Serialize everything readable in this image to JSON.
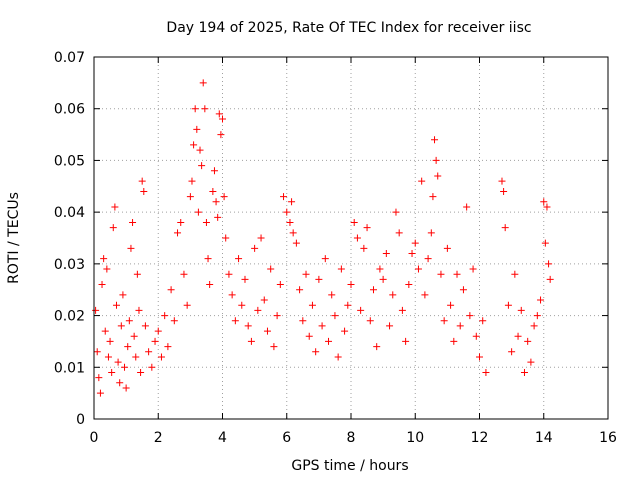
{
  "chart_data": {
    "type": "scatter",
    "title": "Day 194 of 2025, Rate Of TEC Index for receiver iisc",
    "xlabel": "GPS time / hours",
    "ylabel": "ROTI / TECUs",
    "xlim": [
      0,
      16
    ],
    "ylim": [
      0,
      0.07
    ],
    "xticks": [
      0,
      2,
      4,
      6,
      8,
      10,
      12,
      14,
      16
    ],
    "xtick_labels": [
      "0",
      "2",
      "4",
      "6",
      "8",
      "10",
      "12",
      "14",
      "16"
    ],
    "yticks": [
      0,
      0.01,
      0.02,
      0.03,
      0.04,
      0.05,
      0.06,
      0.07
    ],
    "ytick_labels": [
      "0",
      "0.01",
      "0.02",
      "0.03",
      "0.04",
      "0.05",
      "0.06",
      "0.07"
    ],
    "grid": true,
    "marker": "+",
    "color": "#ff0000",
    "series": [
      {
        "name": "ROTI",
        "points": [
          [
            0.05,
            0.021
          ],
          [
            0.1,
            0.013
          ],
          [
            0.15,
            0.008
          ],
          [
            0.2,
            0.005
          ],
          [
            0.25,
            0.026
          ],
          [
            0.3,
            0.031
          ],
          [
            0.35,
            0.017
          ],
          [
            0.4,
            0.029
          ],
          [
            0.45,
            0.012
          ],
          [
            0.5,
            0.015
          ],
          [
            0.55,
            0.009
          ],
          [
            0.6,
            0.037
          ],
          [
            0.65,
            0.041
          ],
          [
            0.7,
            0.022
          ],
          [
            0.75,
            0.011
          ],
          [
            0.8,
            0.007
          ],
          [
            0.85,
            0.018
          ],
          [
            0.9,
            0.024
          ],
          [
            0.95,
            0.01
          ],
          [
            1.0,
            0.006
          ],
          [
            1.05,
            0.014
          ],
          [
            1.1,
            0.019
          ],
          [
            1.15,
            0.033
          ],
          [
            1.2,
            0.038
          ],
          [
            1.25,
            0.016
          ],
          [
            1.3,
            0.012
          ],
          [
            1.35,
            0.028
          ],
          [
            1.4,
            0.021
          ],
          [
            1.45,
            0.009
          ],
          [
            1.5,
            0.046
          ],
          [
            1.55,
            0.044
          ],
          [
            1.6,
            0.018
          ],
          [
            1.7,
            0.013
          ],
          [
            1.8,
            0.01
          ],
          [
            1.9,
            0.015
          ],
          [
            2.0,
            0.017
          ],
          [
            2.1,
            0.012
          ],
          [
            2.2,
            0.02
          ],
          [
            2.3,
            0.014
          ],
          [
            2.4,
            0.025
          ],
          [
            2.5,
            0.019
          ],
          [
            2.6,
            0.036
          ],
          [
            2.7,
            0.038
          ],
          [
            2.8,
            0.028
          ],
          [
            2.9,
            0.022
          ],
          [
            3.0,
            0.043
          ],
          [
            3.05,
            0.046
          ],
          [
            3.1,
            0.053
          ],
          [
            3.15,
            0.06
          ],
          [
            3.2,
            0.056
          ],
          [
            3.25,
            0.04
          ],
          [
            3.3,
            0.052
          ],
          [
            3.35,
            0.049
          ],
          [
            3.4,
            0.065
          ],
          [
            3.45,
            0.06
          ],
          [
            3.5,
            0.038
          ],
          [
            3.55,
            0.031
          ],
          [
            3.6,
            0.026
          ],
          [
            3.7,
            0.044
          ],
          [
            3.75,
            0.048
          ],
          [
            3.8,
            0.042
          ],
          [
            3.85,
            0.039
          ],
          [
            3.9,
            0.059
          ],
          [
            3.95,
            0.055
          ],
          [
            4.0,
            0.058
          ],
          [
            4.05,
            0.043
          ],
          [
            4.1,
            0.035
          ],
          [
            4.2,
            0.028
          ],
          [
            4.3,
            0.024
          ],
          [
            4.4,
            0.019
          ],
          [
            4.5,
            0.031
          ],
          [
            4.6,
            0.022
          ],
          [
            4.7,
            0.027
          ],
          [
            4.8,
            0.018
          ],
          [
            4.9,
            0.015
          ],
          [
            5.0,
            0.033
          ],
          [
            5.1,
            0.021
          ],
          [
            5.2,
            0.035
          ],
          [
            5.3,
            0.023
          ],
          [
            5.4,
            0.017
          ],
          [
            5.5,
            0.029
          ],
          [
            5.6,
            0.014
          ],
          [
            5.7,
            0.02
          ],
          [
            5.8,
            0.026
          ],
          [
            5.9,
            0.043
          ],
          [
            6.0,
            0.04
          ],
          [
            6.1,
            0.038
          ],
          [
            6.15,
            0.042
          ],
          [
            6.2,
            0.036
          ],
          [
            6.3,
            0.034
          ],
          [
            6.4,
            0.025
          ],
          [
            6.5,
            0.019
          ],
          [
            6.6,
            0.028
          ],
          [
            6.7,
            0.016
          ],
          [
            6.8,
            0.022
          ],
          [
            6.9,
            0.013
          ],
          [
            7.0,
            0.027
          ],
          [
            7.1,
            0.018
          ],
          [
            7.2,
            0.031
          ],
          [
            7.3,
            0.015
          ],
          [
            7.4,
            0.024
          ],
          [
            7.5,
            0.02
          ],
          [
            7.6,
            0.012
          ],
          [
            7.7,
            0.029
          ],
          [
            7.8,
            0.017
          ],
          [
            7.9,
            0.022
          ],
          [
            8.0,
            0.026
          ],
          [
            8.1,
            0.038
          ],
          [
            8.2,
            0.035
          ],
          [
            8.3,
            0.021
          ],
          [
            8.4,
            0.033
          ],
          [
            8.5,
            0.037
          ],
          [
            8.6,
            0.019
          ],
          [
            8.7,
            0.025
          ],
          [
            8.8,
            0.014
          ],
          [
            8.9,
            0.029
          ],
          [
            9.0,
            0.027
          ],
          [
            9.1,
            0.032
          ],
          [
            9.2,
            0.018
          ],
          [
            9.3,
            0.024
          ],
          [
            9.4,
            0.04
          ],
          [
            9.5,
            0.036
          ],
          [
            9.6,
            0.021
          ],
          [
            9.7,
            0.015
          ],
          [
            9.8,
            0.026
          ],
          [
            9.9,
            0.032
          ],
          [
            10.0,
            0.034
          ],
          [
            10.1,
            0.029
          ],
          [
            10.2,
            0.046
          ],
          [
            10.3,
            0.024
          ],
          [
            10.4,
            0.031
          ],
          [
            10.5,
            0.036
          ],
          [
            10.55,
            0.043
          ],
          [
            10.6,
            0.054
          ],
          [
            10.65,
            0.05
          ],
          [
            10.7,
            0.047
          ],
          [
            10.8,
            0.028
          ],
          [
            10.9,
            0.019
          ],
          [
            11.0,
            0.033
          ],
          [
            11.1,
            0.022
          ],
          [
            11.2,
            0.015
          ],
          [
            11.3,
            0.028
          ],
          [
            11.4,
            0.018
          ],
          [
            11.5,
            0.025
          ],
          [
            11.6,
            0.041
          ],
          [
            11.7,
            0.02
          ],
          [
            11.8,
            0.029
          ],
          [
            11.9,
            0.016
          ],
          [
            12.0,
            0.012
          ],
          [
            12.1,
            0.019
          ],
          [
            12.2,
            0.009
          ],
          [
            12.7,
            0.046
          ],
          [
            12.75,
            0.044
          ],
          [
            12.8,
            0.037
          ],
          [
            12.9,
            0.022
          ],
          [
            13.0,
            0.013
          ],
          [
            13.1,
            0.028
          ],
          [
            13.2,
            0.016
          ],
          [
            13.3,
            0.021
          ],
          [
            13.4,
            0.009
          ],
          [
            13.5,
            0.015
          ],
          [
            13.6,
            0.011
          ],
          [
            13.7,
            0.018
          ],
          [
            13.8,
            0.02
          ],
          [
            13.9,
            0.023
          ],
          [
            14.0,
            0.042
          ],
          [
            14.05,
            0.034
          ],
          [
            14.1,
            0.041
          ],
          [
            14.15,
            0.03
          ],
          [
            14.2,
            0.027
          ]
        ]
      }
    ]
  }
}
